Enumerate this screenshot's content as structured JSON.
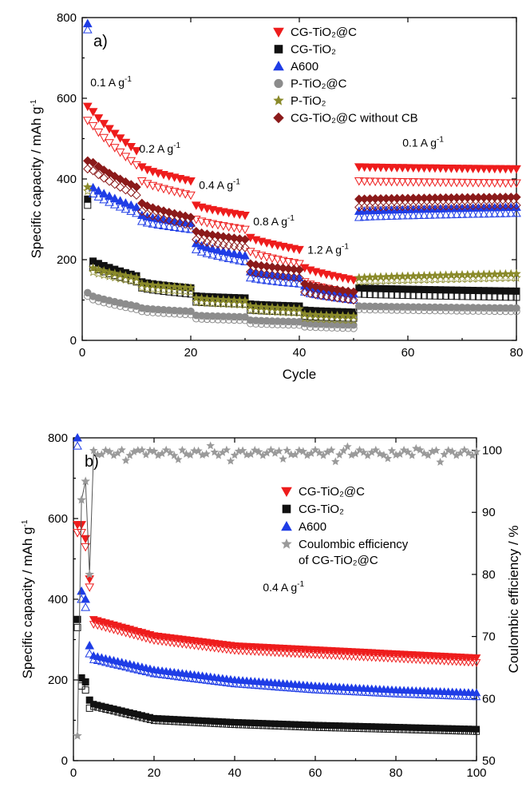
{
  "chart_data": [
    {
      "type": "scatter",
      "panel_label": "a)",
      "xlabel": "Cycle",
      "ylabel": "Specific capacity / mAh g",
      "ylabel_sup": "-1",
      "xlim": [
        0,
        80
      ],
      "ylim": [
        0,
        800
      ],
      "xticks": [
        "0",
        "20",
        "40",
        "60",
        "80"
      ],
      "yticks": [
        "0",
        "200",
        "400",
        "600",
        "800"
      ],
      "annotations": [
        {
          "text": "0.1 A g",
          "sup": "-1",
          "x": 1.5,
          "y": 630
        },
        {
          "text": "0.2 A g",
          "sup": "-1",
          "x": 10.5,
          "y": 465
        },
        {
          "text": "0.4 A g",
          "sup": "-1",
          "x": 21.5,
          "y": 375
        },
        {
          "text": "0.8 A g",
          "sup": "-1",
          "x": 31.5,
          "y": 285
        },
        {
          "text": "1.2 A g",
          "sup": "-1",
          "x": 41.5,
          "y": 215
        },
        {
          "text": "0.1 A g",
          "sup": "-1",
          "x": 59,
          "y": 480
        }
      ],
      "legend": [
        {
          "label": "CG-TiO₂@C",
          "marker": "tri-down",
          "color": "#ee1c1c"
        },
        {
          "label": "CG-TiO₂",
          "marker": "square",
          "color": "#111111"
        },
        {
          "label": "A600",
          "marker": "tri-up",
          "color": "#1f3de6"
        },
        {
          "label": "P-TiO₂@C",
          "marker": "circle",
          "color": "#8c8c8c"
        },
        {
          "label": "P-TiO₂",
          "marker": "star",
          "color": "#8a8a2a"
        },
        {
          "label": "CG-TiO₂@C without CB",
          "marker": "diamond",
          "color": "#8b1a1a"
        }
      ],
      "series": [
        {
          "name": "CG-TiO₂@C",
          "marker": "tri-down",
          "color": "#ee1c1c",
          "segments": [
            [
              1,
              10,
              590,
              470
            ],
            [
              11,
              20,
              430,
              395
            ],
            [
              21,
              30,
              335,
              310
            ],
            [
              31,
              40,
              255,
              225
            ],
            [
              41,
              50,
              180,
              150
            ],
            [
              51,
              80,
              430,
              425
            ]
          ],
          "discharge_offset": -35,
          "first_point": [
            1,
            580
          ]
        },
        {
          "name": "CG-TiO₂",
          "marker": "square",
          "color": "#111111",
          "segments": [
            [
              1,
              10,
              205,
              160
            ],
            [
              11,
              20,
              145,
              130
            ],
            [
              21,
              30,
              110,
              105
            ],
            [
              31,
              40,
              90,
              85
            ],
            [
              41,
              50,
              75,
              70
            ],
            [
              51,
              80,
              130,
              122
            ]
          ],
          "discharge_offset": -15,
          "first_point": [
            1,
            350
          ]
        },
        {
          "name": "A600",
          "marker": "tri-up",
          "color": "#1f3de6",
          "segments": [
            [
              1,
              10,
              390,
              330
            ],
            [
              11,
              20,
              310,
              290
            ],
            [
              21,
              30,
              240,
              210
            ],
            [
              31,
              40,
              170,
              155
            ],
            [
              41,
              50,
              135,
              115
            ],
            [
              51,
              80,
              320,
              330
            ]
          ],
          "discharge_offset": -15,
          "first_point": [
            1,
            785
          ]
        },
        {
          "name": "P-TiO₂@C",
          "marker": "circle",
          "color": "#8c8c8c",
          "segments": [
            [
              1,
              10,
              115,
              85
            ],
            [
              11,
              20,
              80,
              72
            ],
            [
              21,
              30,
              62,
              58
            ],
            [
              31,
              40,
              50,
              46
            ],
            [
              41,
              50,
              42,
              38
            ],
            [
              51,
              80,
              85,
              80
            ]
          ],
          "discharge_offset": -8,
          "first_point": [
            1,
            118
          ]
        },
        {
          "name": "P-TiO₂",
          "marker": "star",
          "color": "#8a8a2a",
          "segments": [
            [
              1,
              10,
              185,
              155
            ],
            [
              11,
              20,
              140,
              130
            ],
            [
              21,
              30,
              105,
              98
            ],
            [
              31,
              40,
              85,
              78
            ],
            [
              41,
              50,
              65,
              60
            ],
            [
              51,
              80,
              155,
              165
            ]
          ],
          "discharge_offset": -10,
          "first_point": [
            1,
            380
          ]
        },
        {
          "name": "CG-TiO₂@C without CB",
          "marker": "diamond",
          "color": "#8b1a1a",
          "segments": [
            [
              1,
              10,
              455,
              380
            ],
            [
              11,
              20,
              340,
              305
            ],
            [
              21,
              30,
              270,
              250
            ],
            [
              31,
              40,
              190,
              175
            ],
            [
              41,
              50,
              140,
              120
            ],
            [
              51,
              80,
              350,
              355
            ]
          ],
          "discharge_offset": -20,
          "first_point": [
            1,
            445
          ]
        }
      ]
    },
    {
      "type": "scatter",
      "panel_label": "b)",
      "xlabel": "Cycle",
      "ylabel": "Specific capacity / mAh g",
      "ylabel_sup": "-1",
      "y2label": "Coulombic efficiency / %",
      "xlim": [
        0,
        100
      ],
      "ylim": [
        0,
        800
      ],
      "y2lim": [
        50,
        102
      ],
      "xticks": [
        "0",
        "20",
        "40",
        "60",
        "80",
        "100"
      ],
      "yticks": [
        "0",
        "200",
        "400",
        "600",
        "800"
      ],
      "y2ticks": [
        "50",
        "60",
        "70",
        "80",
        "90",
        "100"
      ],
      "annotations": [
        {
          "text": "0.4 A g",
          "sup": "-1",
          "x": 47,
          "y": 420
        }
      ],
      "legend": [
        {
          "label": "CG-TiO₂@C",
          "marker": "tri-down",
          "color": "#ee1c1c"
        },
        {
          "label": "CG-TiO₂",
          "marker": "square",
          "color": "#111111"
        },
        {
          "label": "A600",
          "marker": "tri-up",
          "color": "#1f3de6"
        },
        {
          "label": "Coulombic efficiency",
          "label2": "of CG-TiO₂@C",
          "marker": "star",
          "color": "#9a9a9a"
        }
      ],
      "series": [
        {
          "name": "CG-TiO₂@C",
          "marker": "tri-down",
          "color": "#ee1c1c",
          "early": [
            [
              1,
              585
            ],
            [
              2,
              585
            ],
            [
              3,
              550
            ],
            [
              4,
              450
            ]
          ],
          "curve": [
            [
              5,
              350
            ],
            [
              20,
              310
            ],
            [
              40,
              285
            ],
            [
              60,
              275
            ],
            [
              80,
              265
            ],
            [
              100,
              255
            ]
          ],
          "discharge_offset": -12
        },
        {
          "name": "CG-TiO₂",
          "marker": "square",
          "color": "#111111",
          "early": [
            [
              1,
              350
            ],
            [
              2,
              205
            ],
            [
              3,
              195
            ],
            [
              4,
              150
            ]
          ],
          "curve": [
            [
              5,
              140
            ],
            [
              20,
              105
            ],
            [
              40,
              95
            ],
            [
              60,
              88
            ],
            [
              80,
              83
            ],
            [
              100,
              78
            ]
          ],
          "discharge_offset": -6
        },
        {
          "name": "A600",
          "marker": "tri-up",
          "color": "#1f3de6",
          "early": [
            [
              1,
              800
            ],
            [
              2,
              420
            ],
            [
              3,
              400
            ],
            [
              4,
              285
            ]
          ],
          "curve": [
            [
              5,
              260
            ],
            [
              20,
              225
            ],
            [
              40,
              200
            ],
            [
              60,
              185
            ],
            [
              80,
              175
            ],
            [
              100,
              168
            ]
          ],
          "discharge_offset": -10
        },
        {
          "name": "Coulombic efficiency of CG-TiO₂@C",
          "marker": "star",
          "color": "#9a9a9a",
          "axis": "right",
          "early": [
            [
              1,
              54
            ],
            [
              2,
              92
            ],
            [
              3,
              95
            ],
            [
              4,
              80
            ]
          ],
          "plateau": 99.6
        }
      ]
    }
  ]
}
